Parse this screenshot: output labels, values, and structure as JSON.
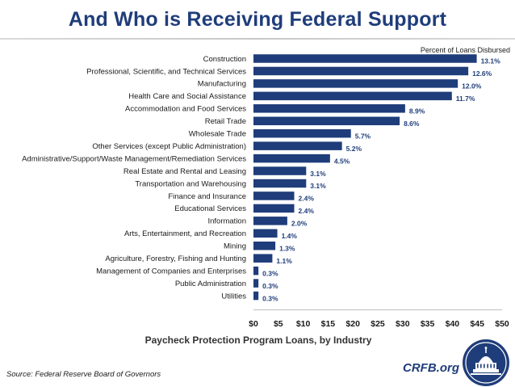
{
  "header": {
    "title": "And Who is Receiving Federal Support"
  },
  "chart_data": {
    "type": "bar",
    "orientation": "horizontal",
    "title": "And Who is Receiving Federal Support",
    "xlabel": "Paycheck Protection Program Loans, by Industry",
    "ylabel": "",
    "unit": "billions of dollars",
    "xlim": [
      0,
      50
    ],
    "x_ticks": [
      "$0",
      "$5",
      "$10",
      "$15",
      "$20",
      "$25",
      "$30",
      "$35",
      "$40",
      "$45",
      "$50"
    ],
    "value_label_note": "Percent of Loans Disbursed",
    "bar_color": "#1f3d7a",
    "categories": [
      "Construction",
      "Professional, Scientific, and Technical Services",
      "Manufacturing",
      "Health Care and Social Assistance",
      "Accommodation and Food Services",
      "Retail Trade",
      "Wholesale Trade",
      "Other Services (except Public Administration)",
      "Administrative/Support/Waste Management/Remediation Services",
      "Real Estate and Rental and Leasing",
      "Transportation and Warehousing",
      "Finance and Insurance",
      "Educational Services",
      "Information",
      "Arts, Entertainment, and Recreation",
      "Mining",
      "Agriculture, Forestry, Fishing and Hunting",
      "Management of Companies and Enterprises",
      "Public Administration",
      "Utilities"
    ],
    "values": [
      44.9,
      43.2,
      41.1,
      39.9,
      30.5,
      29.4,
      19.6,
      17.8,
      15.4,
      10.6,
      10.6,
      8.2,
      8.2,
      6.8,
      4.8,
      4.4,
      3.8,
      1.0,
      1.0,
      1.0
    ],
    "value_labels": [
      "13.1%",
      "12.6%",
      "12.0%",
      "11.7%",
      "8.9%",
      "8.6%",
      "5.7%",
      "5.2%",
      "4.5%",
      "3.1%",
      "3.1%",
      "2.4%",
      "2.4%",
      "2.0%",
      "1.4%",
      "1.3%",
      "1.1%",
      "0.3%",
      "0.3%",
      "0.3%"
    ],
    "grid": false
  },
  "footer": {
    "source": "Source: Federal Reserve Board of Governors",
    "brand": "CRFB.org"
  },
  "colors": {
    "title": "#1f3d7a",
    "bar": "#1f3d7a",
    "seal": "#1f3d7a"
  },
  "icons": {
    "seal": "capitol-seal-icon"
  }
}
